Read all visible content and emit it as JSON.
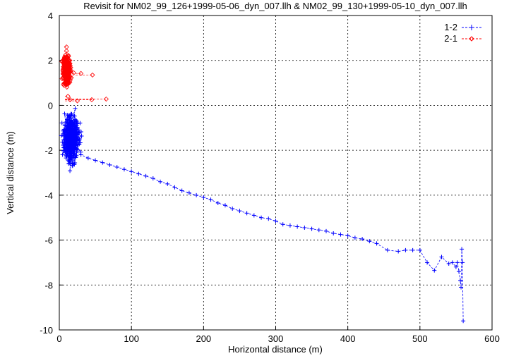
{
  "chart_data": {
    "type": "scatter",
    "title": "Revisit for NM02_99_126+1999-05-06_dyn_007.llh & NM02_99_130+1999-05-10_dyn_007.llh",
    "xlabel": "Horizontal distance (m)",
    "ylabel": "Vertical distance (m)",
    "xlim": [
      0,
      600
    ],
    "ylim": [
      -10,
      4
    ],
    "xticks": [
      "0",
      "100",
      "200",
      "300",
      "400",
      "500",
      "600"
    ],
    "yticks": [
      "4",
      "2",
      "0",
      "-2",
      "-4",
      "-6",
      "-8",
      "-10"
    ],
    "grid": true,
    "legend_position": "top-right",
    "series": [
      {
        "name": "1-2",
        "color": "#0000ff",
        "marker": "plus",
        "cluster": {
          "x_range": [
            1,
            32
          ],
          "y_range": [
            -3.0,
            0.0
          ]
        },
        "points": [
          [
            20,
            -2.0
          ],
          [
            30,
            -2.2
          ],
          [
            40,
            -2.35
          ],
          [
            50,
            -2.45
          ],
          [
            60,
            -2.55
          ],
          [
            70,
            -2.65
          ],
          [
            80,
            -2.75
          ],
          [
            90,
            -2.85
          ],
          [
            100,
            -2.95
          ],
          [
            110,
            -3.05
          ],
          [
            120,
            -3.15
          ],
          [
            130,
            -3.25
          ],
          [
            140,
            -3.4
          ],
          [
            150,
            -3.5
          ],
          [
            160,
            -3.65
          ],
          [
            170,
            -3.8
          ],
          [
            180,
            -3.9
          ],
          [
            190,
            -4.0
          ],
          [
            200,
            -4.1
          ],
          [
            210,
            -4.2
          ],
          [
            220,
            -4.35
          ],
          [
            230,
            -4.45
          ],
          [
            240,
            -4.6
          ],
          [
            250,
            -4.7
          ],
          [
            260,
            -4.8
          ],
          [
            270,
            -4.9
          ],
          [
            280,
            -5.0
          ],
          [
            290,
            -5.05
          ],
          [
            300,
            -5.15
          ],
          [
            310,
            -5.3
          ],
          [
            320,
            -5.35
          ],
          [
            330,
            -5.4
          ],
          [
            340,
            -5.45
          ],
          [
            350,
            -5.5
          ],
          [
            360,
            -5.55
          ],
          [
            370,
            -5.6
          ],
          [
            380,
            -5.7
          ],
          [
            390,
            -5.75
          ],
          [
            400,
            -5.8
          ],
          [
            410,
            -5.9
          ],
          [
            420,
            -5.95
          ],
          [
            430,
            -6.05
          ],
          [
            440,
            -6.15
          ],
          [
            455,
            -6.45
          ],
          [
            470,
            -6.5
          ],
          [
            480,
            -6.45
          ],
          [
            490,
            -6.45
          ],
          [
            500,
            -6.45
          ],
          [
            510,
            -7.0
          ],
          [
            520,
            -7.35
          ],
          [
            530,
            -6.75
          ],
          [
            540,
            -7.05
          ],
          [
            545,
            -7.0
          ],
          [
            550,
            -7.2
          ],
          [
            552,
            -7.0
          ],
          [
            554,
            -7.4
          ],
          [
            556,
            -7.8
          ],
          [
            557,
            -8.1
          ],
          [
            558,
            -6.4
          ],
          [
            559,
            -7.0
          ],
          [
            560,
            -9.6
          ]
        ]
      },
      {
        "name": "2-1",
        "color": "#ff0000",
        "marker": "diamond",
        "cluster": {
          "x_range": [
            2,
            18
          ],
          "y_range": [
            0.5,
            2.6
          ]
        },
        "points": [
          [
            10,
            2.6
          ],
          [
            12,
            1.55
          ],
          [
            20,
            1.45
          ],
          [
            30,
            1.42
          ],
          [
            46,
            1.35
          ],
          [
            12,
            0.4
          ],
          [
            15,
            0.25
          ],
          [
            25,
            0.2
          ],
          [
            45,
            0.25
          ],
          [
            65,
            0.28
          ]
        ]
      }
    ]
  }
}
